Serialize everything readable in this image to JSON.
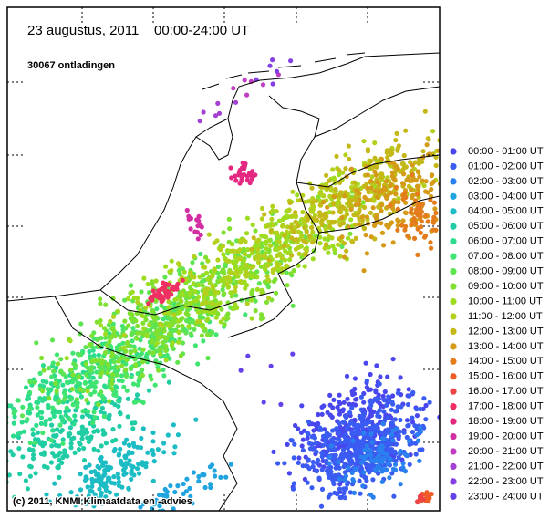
{
  "header": {
    "title": "23 augustus, 2011    00:00-24:00 UT",
    "count": "30067 ontladingen"
  },
  "legend": {
    "items": [
      {
        "label": "00:00 - 01:00 UT",
        "color": "#4a46ee"
      },
      {
        "label": "01:00 - 02:00 UT",
        "color": "#3a5cf2"
      },
      {
        "label": "02:00 - 03:00 UT",
        "color": "#2a80ee"
      },
      {
        "label": "03:00 - 04:00 UT",
        "color": "#20a4e0"
      },
      {
        "label": "04:00 - 05:00 UT",
        "color": "#1cbcc4"
      },
      {
        "label": "05:00 - 06:00 UT",
        "color": "#20cca4"
      },
      {
        "label": "06:00 - 07:00 UT",
        "color": "#2cdc8c"
      },
      {
        "label": "07:00 - 08:00 UT",
        "color": "#40e470"
      },
      {
        "label": "08:00 - 09:00 UT",
        "color": "#5ee450"
      },
      {
        "label": "09:00 - 10:00 UT",
        "color": "#80e030"
      },
      {
        "label": "10:00 - 11:00 UT",
        "color": "#9edc20"
      },
      {
        "label": "11:00 - 12:00 UT",
        "color": "#b4d01c"
      },
      {
        "label": "12:00 - 13:00 UT",
        "color": "#c4b818"
      },
      {
        "label": "13:00 - 14:00 UT",
        "color": "#d49a18"
      },
      {
        "label": "14:00 - 15:00 UT",
        "color": "#e47c1c"
      },
      {
        "label": "15:00 - 16:00 UT",
        "color": "#f05c28"
      },
      {
        "label": "16:00 - 17:00 UT",
        "color": "#f04444"
      },
      {
        "label": "17:00 - 18:00 UT",
        "color": "#f03062"
      },
      {
        "label": "18:00 - 19:00 UT",
        "color": "#e42882"
      },
      {
        "label": "19:00 - 20:00 UT",
        "color": "#d22ea2"
      },
      {
        "label": "20:00 - 21:00 UT",
        "color": "#c03cc0"
      },
      {
        "label": "21:00 - 22:00 UT",
        "color": "#a440d2"
      },
      {
        "label": "22:00 - 23:00 UT",
        "color": "#8440e0"
      },
      {
        "label": "23:00 - 24:00 UT",
        "color": "#6442e8"
      }
    ]
  },
  "footer": {
    "copyright": "(c) 2011, KNMI Klimaatdata en -advies"
  }
}
